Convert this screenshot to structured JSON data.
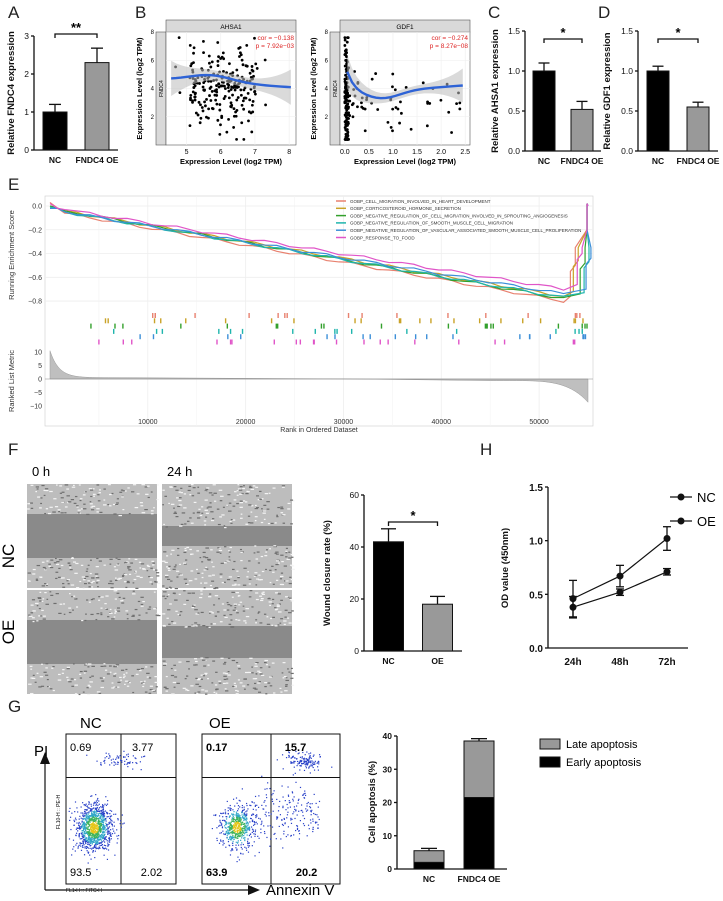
{
  "panels": {
    "A": {
      "label": "A",
      "chart_data": {
        "type": "bar",
        "categories": [
          "NC",
          "FNDC4 OE"
        ],
        "values": [
          1.0,
          2.3
        ],
        "errors": [
          0.2,
          0.38
        ],
        "ylabel": "Relative FNDC4 expression",
        "ylim": [
          0,
          3
        ],
        "yticks": [
          "0",
          "1",
          "2",
          "3"
        ],
        "significance": "**",
        "colors": [
          "#000000",
          "#999999"
        ]
      }
    },
    "B": {
      "label": "B",
      "plots": [
        {
          "chart_data": {
            "type": "scatter",
            "title": "AHSA1",
            "ylabel_inner": "FNDC4",
            "xlabel": "Expression Level (log2 TPM)",
            "ylabel": "Expression Level (log2 TPM)",
            "xticks": [
              "5",
              "6",
              "7",
              "8"
            ],
            "yticks": [
              "2",
              "4",
              "6",
              "8"
            ],
            "xlim": [
              4.4,
              8.2
            ],
            "ylim": [
              0,
              8
            ],
            "annotation_cor": "cor = −0.138",
            "annotation_p": "p = 7.92e−03"
          }
        },
        {
          "chart_data": {
            "type": "scatter",
            "title": "GDF1",
            "ylabel_inner": "FNDC4",
            "xlabel": "Expression Level (log2 TPM)",
            "ylabel": "Expression Level (log2 TPM)",
            "xticks": [
              "0.0",
              "0.5",
              "1.0",
              "1.5",
              "2.0",
              "2.5"
            ],
            "yticks": [
              "2",
              "4",
              "6",
              "8"
            ],
            "xlim": [
              -0.1,
              2.6
            ],
            "ylim": [
              0,
              8
            ],
            "annotation_cor": "cor = −0.274",
            "annotation_p": "p = 8.27e−08"
          }
        }
      ]
    },
    "C": {
      "label": "C",
      "chart_data": {
        "type": "bar",
        "categories": [
          "NC",
          "FNDC4 OE"
        ],
        "values": [
          1.0,
          0.52
        ],
        "errors": [
          0.1,
          0.1
        ],
        "ylabel": "Relative AHSA1 expression",
        "ylim": [
          0,
          1.5
        ],
        "yticks": [
          "0.0",
          "0.5",
          "1.0",
          "1.5"
        ],
        "significance": "*",
        "colors": [
          "#000000",
          "#999999"
        ]
      }
    },
    "D": {
      "label": "D",
      "chart_data": {
        "type": "bar",
        "categories": [
          "NC",
          "FNDC4 OE"
        ],
        "values": [
          1.0,
          0.55
        ],
        "errors": [
          0.06,
          0.06
        ],
        "ylabel": "Relative GDF1 expression",
        "ylim": [
          0,
          1.5
        ],
        "yticks": [
          "0.0",
          "0.5",
          "1.0",
          "1.5"
        ],
        "significance": "*",
        "colors": [
          "#000000",
          "#999999"
        ]
      }
    },
    "E": {
      "label": "E",
      "chart_data": {
        "type": "line",
        "ylabel_top": "Running Enrichment Score",
        "ylabel_bottom": "Ranked List Metric",
        "xlabel": "Rank in Ordered Dataset",
        "xticks": [
          "10000",
          "20000",
          "30000",
          "40000",
          "50000"
        ],
        "yticks_top": [
          "0.0",
          "−0.2",
          "−0.4",
          "−0.6",
          "−0.8"
        ],
        "yticks_bottom": [
          "10",
          "5",
          "0",
          "−5",
          "−10"
        ],
        "series": [
          {
            "name": "GOBP_CELL_MIGRATION_INVOLVED_IN_HEART_DEVELOPMENT",
            "color": "#e8816f"
          },
          {
            "name": "GOBP_CORTICOSTEROID_HORMONE_SECRETION",
            "color": "#c9a227"
          },
          {
            "name": "GOBP_NEGATIVE_REGULATION_OF_CELL_MIGRATION_INVOLVED_IN_SPROUTING_ANGIOGENESIS",
            "color": "#33a02c"
          },
          {
            "name": "GOBP_NEGATIVE_REGULATION_OF_SMOOTH_MUSCLE_CELL_MIGRATION",
            "color": "#1fb5ad"
          },
          {
            "name": "GOBP_NEGATIVE_REGULATION_OF_VASCULAR_ASSOCIATED_SMOOTH_MUSCLE_CELL_PROLIFERATION",
            "color": "#3c8fd8"
          },
          {
            "name": "GOBP_RESPONSE_TO_FOOD",
            "color": "#e055c8"
          }
        ]
      }
    },
    "F": {
      "label": "F",
      "time_labels": [
        "0 h",
        "24 h"
      ],
      "row_labels": [
        "NC",
        "OE"
      ],
      "chart_data": {
        "type": "bar",
        "categories": [
          "NC",
          "OE"
        ],
        "values": [
          42,
          18
        ],
        "errors": [
          5,
          3
        ],
        "ylabel": "Wound closure rate (%)",
        "ylim": [
          0,
          60
        ],
        "yticks": [
          "0",
          "20",
          "40",
          "60"
        ],
        "significance": "*",
        "colors": [
          "#000000",
          "#999999"
        ]
      }
    },
    "H": {
      "label": "H",
      "chart_data": {
        "type": "line",
        "x": [
          "24h",
          "48h",
          "72h"
        ],
        "ylabel": "OD value (450nm)",
        "ylim": [
          0,
          1.5
        ],
        "yticks": [
          "0.0",
          "0.5",
          "1.0",
          "1.5"
        ],
        "series": [
          {
            "name": "NC",
            "values": [
              0.38,
              0.52,
              0.71
            ],
            "errors": [
              0.1,
              0.03,
              0.03
            ]
          },
          {
            "name": "OE",
            "values": [
              0.46,
              0.67,
              1.02
            ],
            "errors": [
              0.17,
              0.1,
              0.11
            ]
          }
        ]
      }
    },
    "G": {
      "label": "G",
      "flow": [
        {
          "title": "NC",
          "q_ul": "0.69",
          "q_ur": "3.77",
          "q_ll": "93.5",
          "q_lr": "2.02"
        },
        {
          "title": "OE",
          "q_ul": "0.17",
          "q_ur": "15.7",
          "q_ll": "63.9",
          "q_lr": "20.2"
        }
      ],
      "axis_y": "PI",
      "axis_x": "Annexin V",
      "flow_ylabel": "FL10-H :: PE-H",
      "flow_xlabel": "FL1-H :: FITC-H",
      "chart_data": {
        "type": "bar",
        "stacked": true,
        "categories": [
          "NC",
          "FNDC4 OE"
        ],
        "series": [
          {
            "name": "Early apoptosis",
            "values": [
              2,
              21.5
            ],
            "color": "#000000"
          },
          {
            "name": "Late apoptosis",
            "values": [
              3.5,
              17
            ],
            "color": "#999999"
          }
        ],
        "ylabel": "Cell apoptosis (%)",
        "ylim": [
          0,
          40
        ],
        "yticks": [
          "0",
          "10",
          "20",
          "30",
          "40"
        ]
      }
    }
  }
}
